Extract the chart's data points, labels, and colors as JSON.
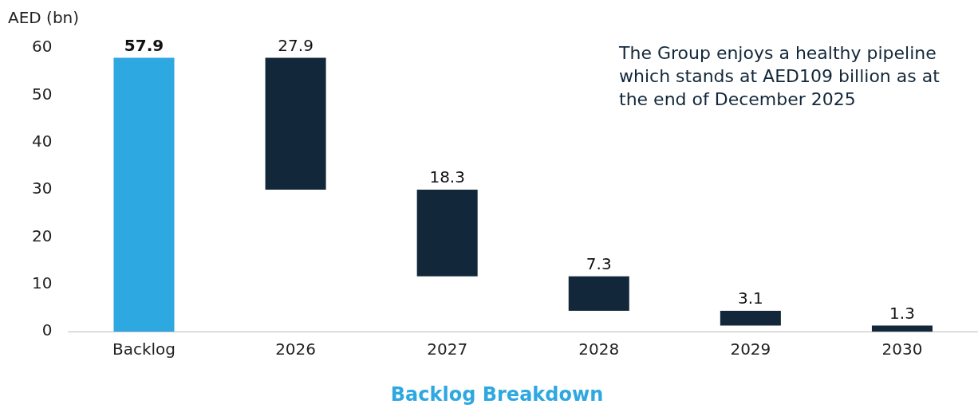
{
  "chart_data": {
    "type": "bar",
    "title": "Backlog Breakdown",
    "ylabel": "AED (bn)",
    "categories": [
      "Backlog",
      "2026",
      "2027",
      "2028",
      "2029",
      "2030"
    ],
    "values": [
      57.9,
      27.9,
      18.3,
      7.3,
      3.1,
      1.3
    ],
    "base": [
      0,
      30.0,
      11.7,
      4.4,
      1.3,
      0
    ],
    "colors": [
      "#2ea8e0",
      "#12273a",
      "#12273a",
      "#12273a",
      "#12273a",
      "#12273a"
    ],
    "ylim": [
      0,
      60
    ],
    "yticks": [
      0,
      10,
      20,
      30,
      40,
      50,
      60
    ],
    "grid": false,
    "legend": false,
    "data_labels": true,
    "annotations": [
      "The Group enjoys a healthy pipeline which stands at AED109 billion as at the end of December 2025"
    ]
  }
}
